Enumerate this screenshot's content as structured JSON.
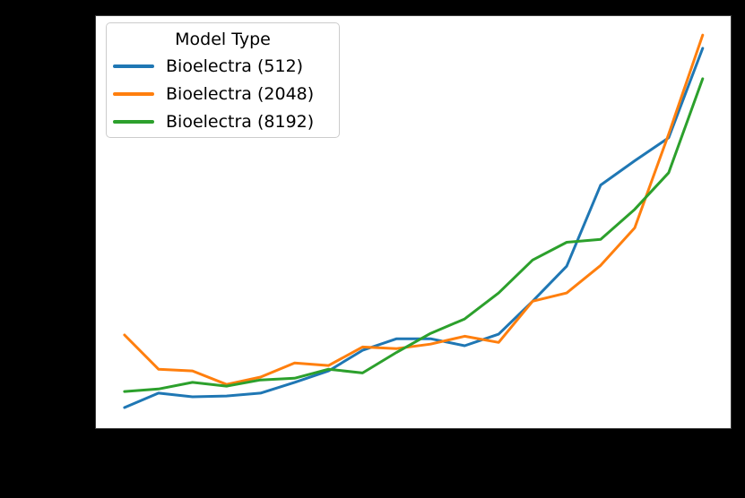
{
  "figure": {
    "background_color": "#000000",
    "plot_background_color": "#ffffff",
    "note": "axis tick labels and axis titles are not visible (rendered black on black)"
  },
  "legend": {
    "title": "Model Type",
    "position": "upper-left",
    "entries": [
      {
        "label": "Bioelectra (512)",
        "color": "#1f77b4"
      },
      {
        "label": "Bioelectra (2048)",
        "color": "#ff7f0e"
      },
      {
        "label": "Bioelectra (8192)",
        "color": "#2ca02c"
      }
    ]
  },
  "chart_data": {
    "type": "line",
    "title": "",
    "xlabel": "",
    "ylabel": "",
    "x": [
      1,
      2,
      3,
      4,
      5,
      6,
      7,
      8,
      9,
      10,
      11,
      12,
      13,
      14,
      15,
      16,
      17,
      18
    ],
    "y_unit": "fraction of plot height (estimated; no visible tick labels)",
    "ylim": [
      0,
      1
    ],
    "grid": false,
    "tick_labels_visible": false,
    "legend_position": "upper-left",
    "series": [
      {
        "name": "Bioelectra (512)",
        "color": "#1f77b4",
        "values": [
          0.05,
          0.085,
          0.076,
          0.078,
          0.085,
          0.111,
          0.139,
          0.189,
          0.217,
          0.217,
          0.2,
          0.228,
          0.308,
          0.393,
          0.59,
          0.649,
          0.705,
          0.922
        ]
      },
      {
        "name": "Bioelectra (2048)",
        "color": "#ff7f0e",
        "values": [
          0.226,
          0.143,
          0.139,
          0.106,
          0.124,
          0.158,
          0.152,
          0.197,
          0.193,
          0.204,
          0.223,
          0.208,
          0.308,
          0.328,
          0.395,
          0.486,
          0.714,
          0.954
        ]
      },
      {
        "name": "Bioelectra (8192)",
        "color": "#2ca02c",
        "values": [
          0.089,
          0.095,
          0.111,
          0.102,
          0.117,
          0.121,
          0.143,
          0.134,
          0.184,
          0.23,
          0.265,
          0.328,
          0.408,
          0.451,
          0.458,
          0.531,
          0.62,
          0.848
        ]
      }
    ]
  }
}
